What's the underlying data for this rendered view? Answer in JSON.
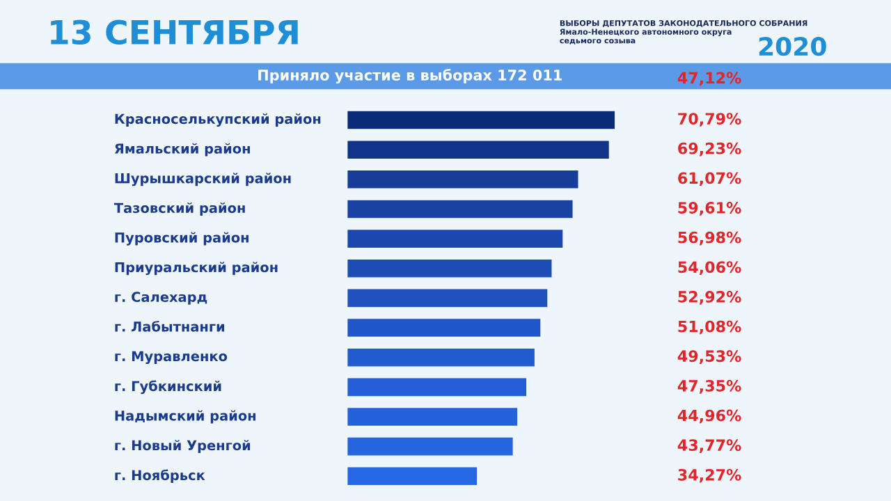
{
  "chart_data": {
    "type": "bar",
    "orientation": "horizontal",
    "title": "13 СЕНТЯБРЯ",
    "subtitle": "ВЫБОРЫ ДЕПУТАТОВ ЗАКОНОДАТЕЛЬНОГО СОБРАНИЯ\nЯмало-Ненецкого автономного округа\nседьмого созыва",
    "annotations": [
      "2020",
      "Приняло участие в выборах 172 011",
      "47,12%"
    ],
    "categories": [
      "Красноселькупский район",
      "Ямальский район",
      "Шурышкарский район",
      "Тазовский район",
      "Пуровский район",
      "Приуральский район",
      "г. Салехард",
      "г. Лабытнанги",
      "г. Муравленко",
      "г. Губкинский",
      "Надымский район",
      "г. Новый Уренгой",
      "г. Ноябрьск"
    ],
    "values": [
      70.79,
      69.23,
      61.07,
      59.61,
      56.98,
      54.06,
      52.92,
      51.08,
      49.53,
      47.35,
      44.96,
      43.77,
      34.27
    ],
    "value_labels": [
      "70,79%",
      "69,23%",
      "61,07%",
      "59,61%",
      "56,98%",
      "54,06%",
      "52,92%",
      "51,08%",
      "49,53%",
      "47,35%",
      "44,96%",
      "43,77%",
      "34,27%"
    ],
    "colors": [
      "#0b2a78",
      "#12338a",
      "#173d99",
      "#1a42a3",
      "#1c47ad",
      "#1f4db8",
      "#2052c0",
      "#2156c8",
      "#225ad0",
      "#235ed6",
      "#2462dc",
      "#2565e0",
      "#2668e4"
    ],
    "legend": false
  }
}
